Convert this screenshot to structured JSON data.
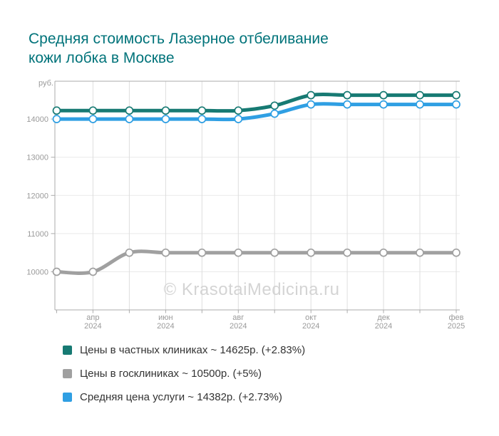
{
  "title": {
    "line1": "Средняя стоимость Лазерное отбеливание",
    "line2": "кожи лобка в Москве",
    "full": "Средняя стоимость Лазерное отбеливание кожи лобка в Москве"
  },
  "watermark": "© KrasotaiMedicina.ru",
  "chart_data": {
    "type": "line",
    "title": "Средняя стоимость Лазерное отбеливание кожи лобка в Москве",
    "y_unit_label": "руб.",
    "ylim": [
      9000,
      15000
    ],
    "yticks": [
      10000,
      11000,
      12000,
      13000,
      14000
    ],
    "n_points": 12,
    "grid": true,
    "legend_position": "bottom",
    "x_ticks": [
      {
        "index": 1,
        "month": "апр",
        "year": "2024"
      },
      {
        "index": 3,
        "month": "июн",
        "year": "2024"
      },
      {
        "index": 5,
        "month": "авг",
        "year": "2024"
      },
      {
        "index": 7,
        "month": "окт",
        "year": "2024"
      },
      {
        "index": 9,
        "month": "дек",
        "year": "2024"
      },
      {
        "index": 11,
        "month": "фев",
        "year": "2025"
      }
    ],
    "series": [
      {
        "name": "Цены в частных клиниках",
        "legend_label": "Цены в частных клиниках ~ 14625р. (+2.83%)",
        "current_value": 14625,
        "change_percent": "+2.83%",
        "color": "#177a73",
        "marker": "circle",
        "values": [
          14222,
          14222,
          14222,
          14222,
          14222,
          14222,
          14350,
          14625,
          14625,
          14625,
          14625,
          14625
        ]
      },
      {
        "name": "Цены в госклиниках",
        "legend_label": "Цены в госклиниках ~ 10500р. (+5%)",
        "current_value": 10500,
        "change_percent": "+5%",
        "color": "#a0a0a0",
        "marker": "circle",
        "values": [
          10000,
          10000,
          10500,
          10500,
          10500,
          10500,
          10500,
          10500,
          10500,
          10500,
          10500,
          10500
        ]
      },
      {
        "name": "Средняя цена услуги",
        "legend_label": "Средняя цена услуги ~ 14382р. (+2.73%)",
        "current_value": 14382,
        "change_percent": "+2.73%",
        "color": "#2f9fe3",
        "marker": "circle",
        "values": [
          14000,
          14000,
          14000,
          14000,
          14000,
          14000,
          14140,
          14382,
          14382,
          14382,
          14382,
          14382
        ]
      }
    ]
  }
}
